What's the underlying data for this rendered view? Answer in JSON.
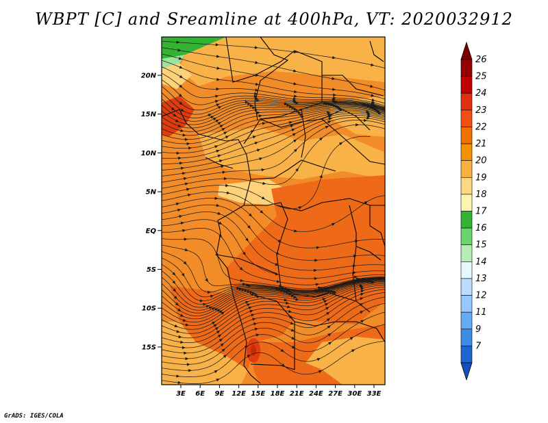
{
  "title": "WBPT [C] and Sreamline at 400hPa, VT: 2020032912",
  "credit": "GrADS: IGES/COLA",
  "lat_labels": [
    "20N",
    "15N",
    "10N",
    "5N",
    "EQ",
    "5S",
    "10S",
    "15S"
  ],
  "lon_labels": [
    "3E",
    "6E",
    "9E",
    "12E",
    "15E",
    "18E",
    "21E",
    "24E",
    "27E",
    "30E",
    "33E"
  ],
  "colorbar": {
    "labels": [
      "26",
      "25",
      "24",
      "23",
      "22",
      "21",
      "20",
      "19",
      "18",
      "17",
      "16",
      "15",
      "14",
      "13",
      "12",
      "11",
      "9",
      "7"
    ],
    "colors": [
      "#960000",
      "#c00000",
      "#e03010",
      "#f05010",
      "#f07000",
      "#f59000",
      "#f8b040",
      "#fcd880",
      "#fcf5b0",
      "#32b432",
      "#6cd46c",
      "#b4ecb4",
      "#e6f8ff",
      "#bcdcff",
      "#96c8ff",
      "#64aaf5",
      "#3c8ce6",
      "#1e64d2"
    ],
    "top_arrow_color": "#7a0000",
    "bottom_arrow_color": "#1450be"
  },
  "map_colors": {
    "background": "#f28c28",
    "warm": "#ee6a18",
    "hot": "#e03c10",
    "cool": "#f9b248",
    "pale": "#fdd27a",
    "green": "#32b432",
    "light_green": "#9ee29e"
  }
}
